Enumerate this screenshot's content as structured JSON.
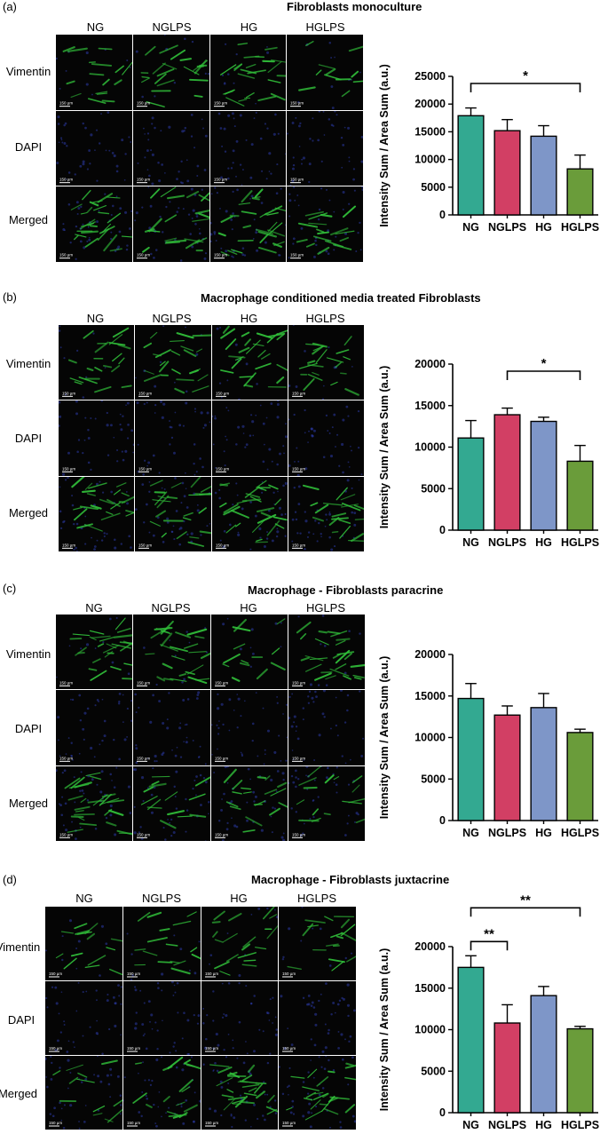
{
  "colors": {
    "NG": "#33a991",
    "NGLPS": "#d23f64",
    "HG": "#7e96c8",
    "HGLPS": "#6a9c3a"
  },
  "panels": [
    {
      "label": "(a)",
      "title": "Fibroblasts monoculture",
      "columns": [
        "NG",
        "NGLPS",
        "HG",
        "HGLPS"
      ],
      "rows": [
        "Vimentin",
        "DAPI",
        "Merged"
      ],
      "scalebar": "150 µm",
      "chart_data": {
        "type": "bar",
        "categories": [
          "NG",
          "NGLPS",
          "HG",
          "HGLPS"
        ],
        "values": [
          17900,
          15200,
          14200,
          8300
        ],
        "errors": [
          1400,
          2000,
          1900,
          2500
        ],
        "ylabel": "Intensity Sum / Area Sum (a.u.)",
        "ylim": [
          0,
          25000
        ],
        "yticks": [
          0,
          5000,
          10000,
          15000,
          20000,
          25000
        ],
        "significance": [
          {
            "from": "NG",
            "to": "HGLPS",
            "label": "*"
          }
        ]
      }
    },
    {
      "label": "(b)",
      "title": "Macrophage conditioned media treated Fibroblasts",
      "columns": [
        "NG",
        "NGLPS",
        "HG",
        "HGLPS"
      ],
      "rows": [
        "Vimentin",
        "DAPI",
        "Merged"
      ],
      "scalebar": "150 µm",
      "chart_data": {
        "type": "bar",
        "categories": [
          "NG",
          "NGLPS",
          "HG",
          "HGLPS"
        ],
        "values": [
          11100,
          13900,
          13100,
          8300
        ],
        "errors": [
          2100,
          800,
          500,
          1900
        ],
        "ylabel": "Intensity Sum / Area Sum (a.u.)",
        "ylim": [
          0,
          20000
        ],
        "yticks": [
          0,
          5000,
          10000,
          15000,
          20000
        ],
        "significance": [
          {
            "from": "NGLPS",
            "to": "HGLPS",
            "label": "*"
          }
        ]
      }
    },
    {
      "label": "(c)",
      "title": "Macrophage - Fibroblasts paracrine",
      "columns": [
        "NG",
        "NGLPS",
        "HG",
        "HGLPS"
      ],
      "rows": [
        "Vimentin",
        "DAPI",
        "Merged"
      ],
      "scalebar": "150 µm",
      "chart_data": {
        "type": "bar",
        "categories": [
          "NG",
          "NGLPS",
          "HG",
          "HGLPS"
        ],
        "values": [
          14700,
          12700,
          13600,
          10600
        ],
        "errors": [
          1800,
          1100,
          1700,
          400
        ],
        "ylabel": "Intensity Sum / Area Sum (a.u.)",
        "ylim": [
          0,
          20000
        ],
        "yticks": [
          0,
          5000,
          10000,
          15000,
          20000
        ],
        "significance": []
      }
    },
    {
      "label": "(d)",
      "title": "Macrophage - Fibroblasts juxtacrine",
      "columns": [
        "NG",
        "NGLPS",
        "HG",
        "HGLPS"
      ],
      "rows": [
        "Vimentin",
        "DAPI",
        "Merged"
      ],
      "scalebar": "150 µm",
      "chart_data": {
        "type": "bar",
        "categories": [
          "NG",
          "NGLPS",
          "HG",
          "HGLPS"
        ],
        "values": [
          17500,
          10800,
          14100,
          10100
        ],
        "errors": [
          1400,
          2200,
          1100,
          300
        ],
        "ylabel": "Intensity Sum / Area Sum (a.u.)",
        "ylim": [
          0,
          20000
        ],
        "yticks": [
          0,
          5000,
          10000,
          15000,
          20000
        ],
        "significance": [
          {
            "from": "NG",
            "to": "NGLPS",
            "label": "**"
          },
          {
            "from": "NG",
            "to": "HGLPS",
            "label": "**"
          }
        ]
      }
    }
  ]
}
